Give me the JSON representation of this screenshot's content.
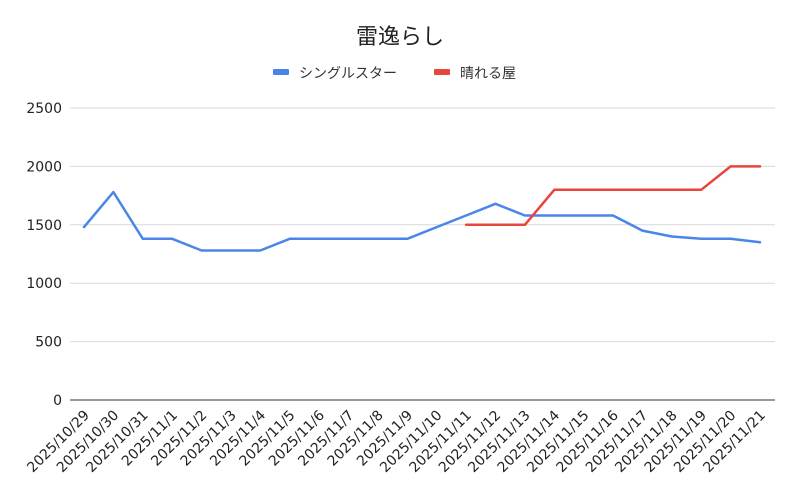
{
  "chart_data": {
    "type": "line",
    "title": "雷逸らし",
    "xlabel": "",
    "ylabel": "",
    "ylim": [
      0,
      2500
    ],
    "yticks": [
      0,
      500,
      1000,
      1500,
      2000,
      2500
    ],
    "grid": true,
    "legend_position": "top",
    "categories": [
      "2025/10/29",
      "2025/10/30",
      "2025/10/31",
      "2025/11/1",
      "2025/11/2",
      "2025/11/3",
      "2025/11/4",
      "2025/11/5",
      "2025/11/6",
      "2025/11/7",
      "2025/11/8",
      "2025/11/9",
      "2025/11/10",
      "2025/11/11",
      "2025/11/12",
      "2025/11/13",
      "2025/11/14",
      "2025/11/15",
      "2025/11/16",
      "2025/11/17",
      "2025/11/18",
      "2025/11/19",
      "2025/11/20",
      "2025/11/21"
    ],
    "series": [
      {
        "name": "シングルスター",
        "color": "#4a86e8",
        "values": [
          1480,
          1780,
          1380,
          1380,
          1280,
          1280,
          1280,
          1380,
          1380,
          1380,
          1380,
          1380,
          1480,
          1580,
          1680,
          1580,
          1580,
          1580,
          1580,
          1450,
          1400,
          1380,
          1380,
          1350
        ]
      },
      {
        "name": "晴れる屋",
        "color": "#e8453c",
        "values": [
          null,
          null,
          null,
          null,
          null,
          null,
          null,
          null,
          null,
          null,
          null,
          null,
          null,
          1500,
          1500,
          1500,
          1800,
          1800,
          1800,
          1800,
          1800,
          1800,
          2000,
          2000
        ]
      }
    ]
  }
}
